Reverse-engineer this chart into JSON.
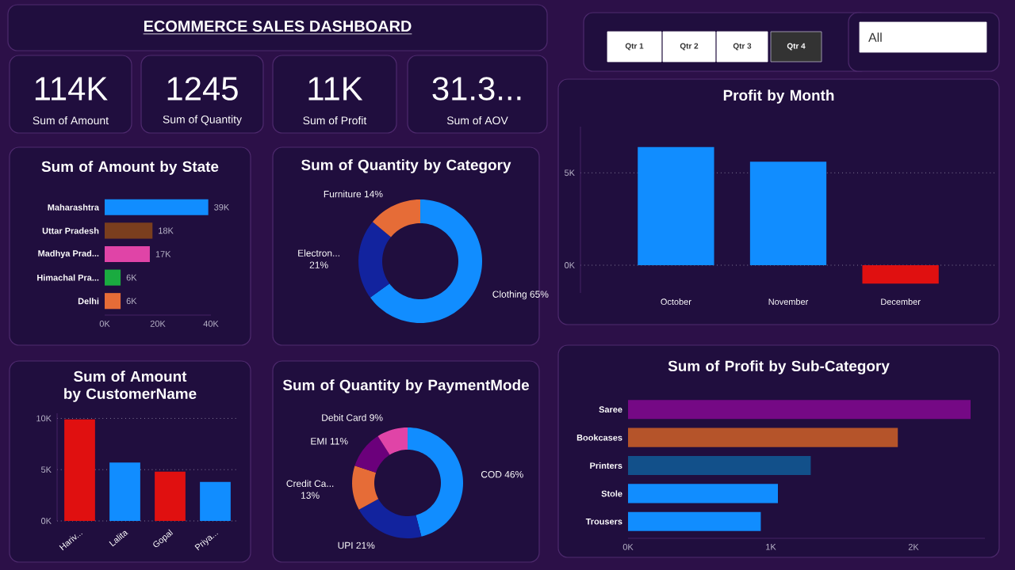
{
  "chart_data": [
    {
      "type": "other",
      "title": "ECOMMERCE SALES DASHBOARD"
    },
    {
      "type": "other",
      "annotations": [
        "114K",
        "Sum of Amount"
      ]
    },
    {
      "type": "other",
      "annotations": [
        "1245",
        "Sum of Quantity"
      ]
    },
    {
      "type": "other",
      "annotations": [
        "11K",
        "Sum of Profit"
      ]
    },
    {
      "type": "other",
      "annotations": [
        "31.3...",
        "Sum of AOV"
      ]
    },
    {
      "type": "other",
      "annotations": [
        "Qtr 1",
        "Qtr 2",
        "Qtr 3",
        "Qtr 4",
        "All"
      ]
    },
    {
      "type": "bar",
      "title": "Sum of Amount by State",
      "orientation": "horizontal",
      "categories": [
        "Maharashtra",
        "Uttar Pradesh",
        "Madhya Prad...",
        "Himachal Pra...",
        "Delhi"
      ],
      "values": [
        39000,
        18000,
        17000,
        6000,
        6000
      ],
      "value_labels": [
        "39K",
        "18K",
        "17K",
        "6K",
        "6K"
      ],
      "colors": [
        "#118dff",
        "#7a3e1e",
        "#e044a7",
        "#1aab40",
        "#e66c37"
      ],
      "xlim": [
        0,
        40000
      ],
      "xticks": [
        {
          "value": 0,
          "label": "0K"
        },
        {
          "value": 20000,
          "label": "20K"
        },
        {
          "value": 40000,
          "label": "40K"
        }
      ]
    },
    {
      "type": "donut",
      "title": "Sum of Quantity by Category",
      "categories": [
        "Clothing",
        "Electron...",
        "Furniture"
      ],
      "values": [
        65,
        21,
        14
      ],
      "value_labels": [
        "65%",
        "21%",
        "14%"
      ],
      "colors": [
        "#118dff",
        "#12239e",
        "#e66c37"
      ]
    },
    {
      "type": "bar",
      "title": "Profit by Month",
      "categories": [
        "October",
        "November",
        "December"
      ],
      "values": [
        6400,
        5600,
        -1000
      ],
      "colors": [
        "#118dff",
        "#118dff",
        "#e01010"
      ],
      "ylim": [
        -1500,
        7500
      ],
      "yticks": [
        {
          "value": 0,
          "label": "0K"
        },
        {
          "value": 5000,
          "label": "5K"
        }
      ],
      "grid": "y"
    },
    {
      "type": "bar",
      "title": "Sum of Amount by CustomerName",
      "categories": [
        "Hariv...",
        "Lalita",
        "Gopal",
        "Priya..."
      ],
      "values": [
        9900,
        5700,
        4800,
        3800
      ],
      "colors": [
        "#e01010",
        "#118dff",
        "#e01010",
        "#118dff"
      ],
      "ylim": [
        0,
        10500
      ],
      "yticks": [
        {
          "value": 0,
          "label": "0K"
        },
        {
          "value": 5000,
          "label": "5K"
        },
        {
          "value": 10000,
          "label": "10K"
        }
      ],
      "grid": "y"
    },
    {
      "type": "donut",
      "title": "Sum of Quantity by PaymentMode",
      "categories": [
        "COD",
        "UPI",
        "Credit Ca...",
        "EMI",
        "Debit Card"
      ],
      "values": [
        46,
        21,
        13,
        11,
        9
      ],
      "value_labels": [
        "46%",
        "21%",
        "13%",
        "11%",
        "9%"
      ],
      "colors": [
        "#118dff",
        "#12239e",
        "#e66c37",
        "#6b007b",
        "#e044a7"
      ]
    },
    {
      "type": "bar",
      "title": "Sum of Profit by Sub-Category",
      "orientation": "horizontal",
      "categories": [
        "Saree",
        "Bookcases",
        "Printers",
        "Stole",
        "Trousers"
      ],
      "values": [
        2400,
        1890,
        1280,
        1050,
        930
      ],
      "colors": [
        "#750985",
        "#b5542a",
        "#12508a",
        "#118dff",
        "#118dff"
      ],
      "xlim": [
        0,
        2500
      ],
      "xticks": [
        {
          "value": 0,
          "label": "0K"
        },
        {
          "value": 1000,
          "label": "1K"
        },
        {
          "value": 2000,
          "label": "2K"
        }
      ]
    }
  ]
}
